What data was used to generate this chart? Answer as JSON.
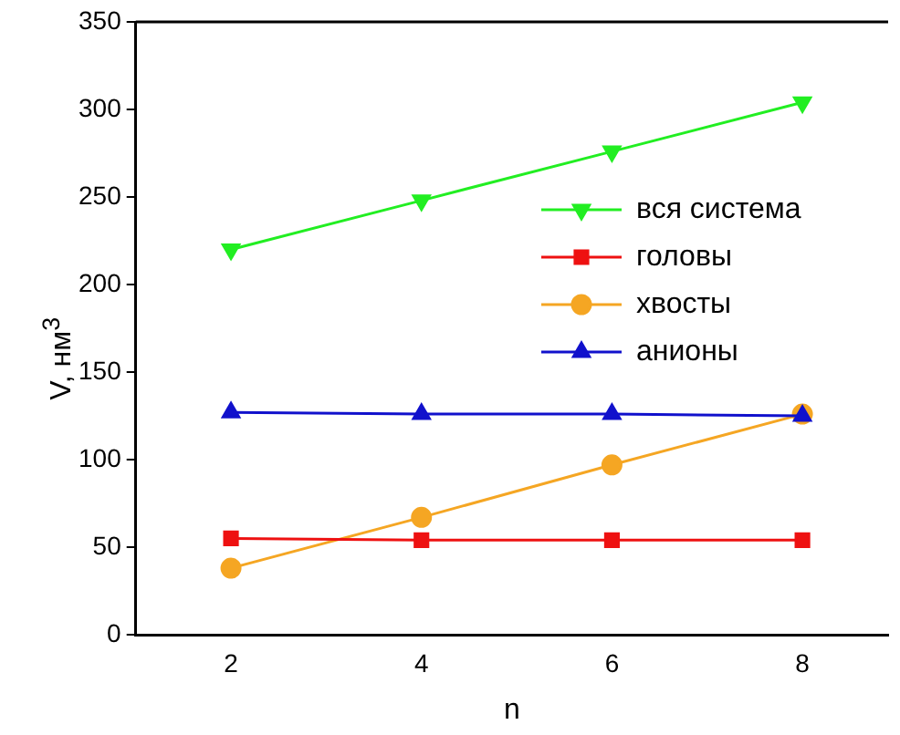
{
  "chart_data": {
    "type": "line",
    "xlabel": "n",
    "ylabel": "V, нм$^{3}$",
    "x": [
      2,
      4,
      6,
      8
    ],
    "xlim": [
      1,
      8.9
    ],
    "xticks": [
      2,
      4,
      6,
      8
    ],
    "ylim": [
      0,
      350
    ],
    "yticks": [
      0,
      50,
      100,
      150,
      200,
      250,
      300,
      350
    ],
    "grid": false,
    "legend": "right",
    "line_style": "solid",
    "series": [
      {
        "name": "вся система",
        "color": "#22ee22",
        "marker": "triangle-down",
        "values": [
          220,
          248,
          276,
          304
        ]
      },
      {
        "name": "головы",
        "color": "#ee1111",
        "marker": "square",
        "values": [
          55,
          54,
          54,
          54
        ]
      },
      {
        "name": "хвосты",
        "color": "#f5a623",
        "marker": "circle",
        "values": [
          38,
          67,
          97,
          126
        ]
      },
      {
        "name": "анионы",
        "color": "#1111cc",
        "marker": "triangle",
        "values": [
          127,
          126,
          126,
          125
        ]
      }
    ]
  }
}
